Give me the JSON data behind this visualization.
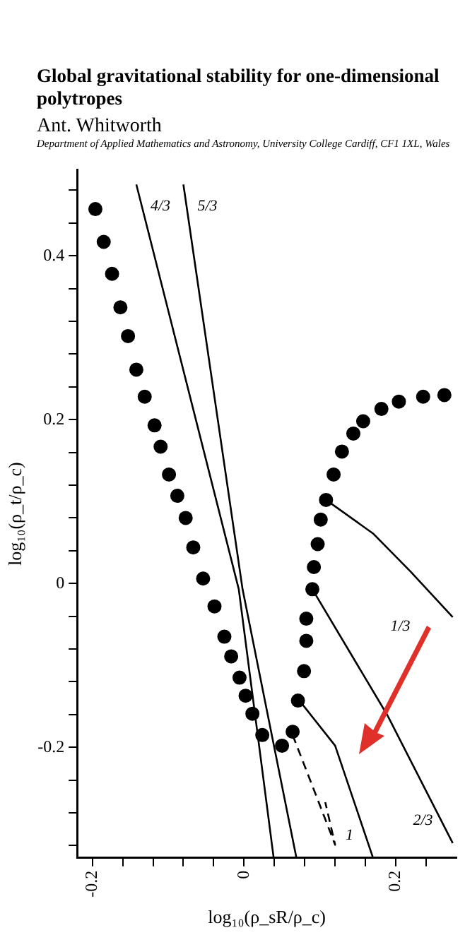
{
  "chart_data": {
    "type": "scatter",
    "title": "Global gravitational stability for one-dimensional polytropes",
    "subtitle": "Ant. Whitworth",
    "annotations": [
      "Department of Applied Mathematics and Astronomy, University College Cardiff, CF1 1XL, Wales"
    ],
    "xlabel": "log₁₀(ρ_sR/ρ_c)",
    "ylabel": "log₁₀(ρ_t/ρ_c)",
    "xlim": [
      -0.22,
      0.28
    ],
    "ylim": [
      -0.335,
      0.505
    ],
    "xticks": [
      -0.2,
      {
        "value": -0.16,
        "label": null
      },
      {
        "value": -0.12,
        "label": null
      },
      {
        "value": -0.08,
        "label": null
      },
      {
        "value": -0.04,
        "label": null
      },
      0,
      {
        "value": 0.04,
        "label": null
      },
      {
        "value": 0.08,
        "label": null
      },
      {
        "value": 0.12,
        "label": null
      },
      {
        "value": 0.16,
        "label": null
      },
      0.2,
      {
        "value": 0.24,
        "label": null
      }
    ],
    "yticks": [
      {
        "value": -0.32,
        "label": null
      },
      {
        "value": -0.28,
        "label": null
      },
      {
        "value": -0.24,
        "label": null
      },
      -0.2,
      {
        "value": -0.16,
        "label": null
      },
      {
        "value": -0.12,
        "label": null
      },
      {
        "value": -0.08,
        "label": null
      },
      {
        "value": -0.04,
        "label": null
      },
      0,
      {
        "value": 0.04,
        "label": null
      },
      {
        "value": 0.08,
        "label": null
      },
      {
        "value": 0.12,
        "label": null
      },
      {
        "value": 0.16,
        "label": null
      },
      0.2,
      {
        "value": 0.24,
        "label": null
      },
      {
        "value": 0.28,
        "label": null
      },
      {
        "value": 0.32,
        "label": null
      },
      {
        "value": 0.36,
        "label": null
      },
      0.4,
      {
        "value": 0.44,
        "label": null
      },
      {
        "value": 0.48,
        "label": null
      }
    ],
    "grid": false,
    "legend": false,
    "marker": "circle",
    "series": [
      {
        "type": "scatter",
        "color": "#000000",
        "x": [
          -0.196,
          -0.185,
          -0.174,
          -0.163,
          -0.153,
          -0.142,
          -0.131,
          -0.118,
          -0.11,
          -0.099,
          -0.088,
          -0.077,
          -0.067,
          -0.054,
          -0.039,
          -0.026,
          -0.017,
          -0.006,
          0.002,
          0.011,
          0.024,
          0.05,
          0.064,
          0.071,
          0.079,
          0.082,
          0.082,
          0.09,
          0.092,
          0.097,
          0.101,
          0.108,
          0.118,
          0.129,
          0.144,
          0.157,
          0.181,
          0.204,
          0.236,
          0.264
        ],
        "values": [
          0.457,
          0.417,
          0.378,
          0.337,
          0.302,
          0.261,
          0.228,
          0.193,
          0.167,
          0.133,
          0.107,
          0.08,
          0.044,
          0.006,
          -0.028,
          -0.065,
          -0.089,
          -0.115,
          -0.137,
          -0.159,
          -0.185,
          -0.198,
          -0.181,
          -0.143,
          -0.107,
          -0.07,
          -0.043,
          -0.007,
          0.02,
          0.048,
          0.078,
          0.102,
          0.133,
          0.161,
          0.183,
          0.198,
          0.213,
          0.222,
          0.228,
          0.23
        ]
      },
      {
        "type": "line",
        "name": "4/3",
        "color": "#000000",
        "marker": "none",
        "x": [
          0.039,
          -0.007,
          -0.142
        ],
        "values": [
          -0.335,
          -0.007,
          0.487
        ]
      },
      {
        "type": "line",
        "name": "5/3",
        "color": "#000000",
        "marker": "none",
        "x": [
          0.069,
          -0.002,
          -0.08
        ],
        "values": [
          -0.335,
          -0.007,
          0.487
        ]
      },
      {
        "type": "line",
        "name": "1/3",
        "color": "#000000",
        "marker": "none",
        "x": [
          0.108,
          0.17,
          0.219,
          0.275
        ],
        "values": [
          0.102,
          0.061,
          0.015,
          -0.041
        ]
      },
      {
        "type": "line",
        "name": "2/3",
        "color": "#000000",
        "marker": "none",
        "x": [
          0.09,
          0.189,
          0.275
        ],
        "values": [
          -0.007,
          -0.161,
          -0.317
        ]
      },
      {
        "type": "line",
        "name": "1",
        "color": "#000000",
        "marker": "none",
        "x": [
          0.073,
          0.12,
          0.17
        ],
        "values": [
          -0.143,
          -0.198,
          -0.335
        ]
      },
      {
        "type": "line",
        "color": "#000000",
        "marker": "none",
        "line_style": "dashed",
        "x": [
          0.064,
          0.095,
          0.12,
          0.107
        ],
        "values": [
          -0.185,
          -0.259,
          -0.319,
          -0.267
        ]
      }
    ]
  }
}
